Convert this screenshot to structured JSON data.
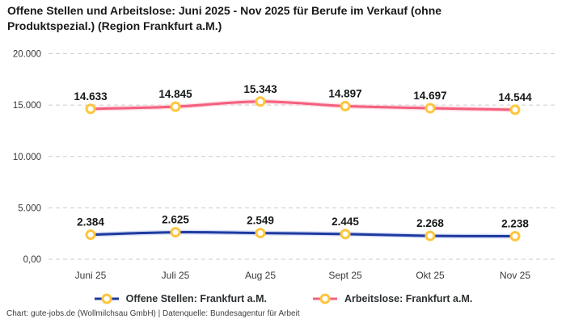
{
  "header": {
    "title": "Offene Stellen und Arbeitslose: Juni 2025 - Nov 2025 für Berufe im Verkauf (ohne Produktspezial.) (Region Frankfurt a.M.)"
  },
  "footer": {
    "attribution": "Chart: gute-jobs.de (Wollmilchsau GmbH) | Datenquelle: Bundesagentur für Arbeit"
  },
  "legend": {
    "items": [
      {
        "label": "Offene Stellen: Frankfurt a.M.",
        "line_color": "#1e3aa0"
      },
      {
        "label": "Arbeitslose: Frankfurt a.M.",
        "line_color": "#f4607e"
      }
    ],
    "marker_ring_color": "#fec53d",
    "position": "bottom-center"
  },
  "chart_data": {
    "type": "line",
    "title": "Offene Stellen und Arbeitslose: Juni 2025 - Nov 2025 für Berufe im Verkauf (ohne Produktspezial.) (Region Frankfurt a.M.)",
    "categories": [
      "Juni 25",
      "Juli 25",
      "Aug 25",
      "Sept 25",
      "Okt 25",
      "Nov 25"
    ],
    "series": [
      {
        "name": "Offene Stellen: Frankfurt a.M.",
        "values": [
          2384,
          2625,
          2549,
          2445,
          2268,
          2238
        ],
        "data_labels": [
          "2.384",
          "2.625",
          "2.549",
          "2.445",
          "2.268",
          "2.238"
        ],
        "color": "#1e3aa0",
        "glow_color": "#b9c7ef"
      },
      {
        "name": "Arbeitslose: Frankfurt a.M.",
        "values": [
          14633,
          14845,
          15343,
          14897,
          14697,
          14544
        ],
        "data_labels": [
          "14.633",
          "14.845",
          "15.343",
          "14.897",
          "14.697",
          "14.544"
        ],
        "color": "#f4607e",
        "glow_color": "#fbc3cf"
      }
    ],
    "marker": {
      "fill": "#ffffff",
      "ring_color": "#fec53d"
    },
    "xlabel": "",
    "ylabel": "",
    "ylim": [
      0,
      20000
    ],
    "ytick_values": [
      0,
      5000,
      10000,
      15000,
      20000
    ],
    "ytick_labels": [
      "0,00",
      "5.000",
      "10.000",
      "15.000",
      "20.000"
    ],
    "grid": "horizontal-dashed",
    "grid_color": "#cccccc",
    "tick_label_color": "#37383a",
    "data_label_color": "#16181a",
    "legend_position": "bottom"
  }
}
